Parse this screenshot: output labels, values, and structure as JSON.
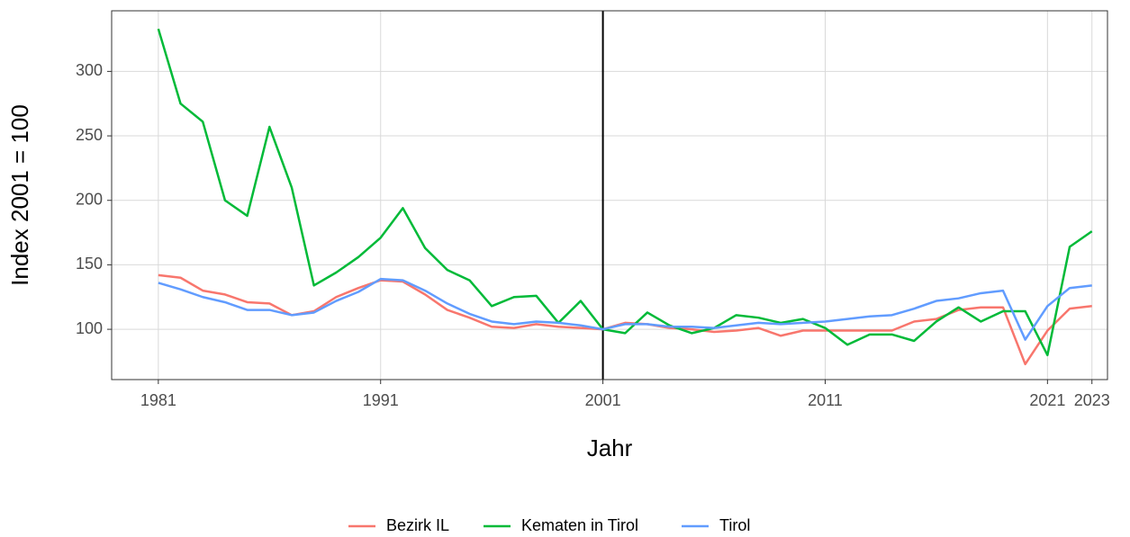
{
  "chart_data": {
    "type": "line",
    "x_label": "Jahr",
    "y_label": "Index 2001 = 100",
    "x": [
      1981,
      1982,
      1983,
      1984,
      1985,
      1986,
      1987,
      1988,
      1989,
      1990,
      1991,
      1992,
      1993,
      1994,
      1995,
      1996,
      1997,
      1998,
      1999,
      2000,
      2001,
      2002,
      2003,
      2004,
      2005,
      2006,
      2007,
      2008,
      2009,
      2010,
      2011,
      2012,
      2013,
      2014,
      2015,
      2016,
      2017,
      2018,
      2019,
      2020,
      2021,
      2022,
      2023
    ],
    "series": [
      {
        "name": "Bezirk IL",
        "color": "#f8766d",
        "values": [
          142,
          140,
          130,
          127,
          121,
          120,
          111,
          114,
          125,
          132,
          138,
          137,
          127,
          115,
          109,
          102,
          101,
          104,
          102,
          101,
          100,
          105,
          104,
          101,
          100,
          98,
          99,
          101,
          95,
          99,
          99,
          99,
          99,
          99,
          106,
          108,
          115,
          117,
          117,
          73,
          99,
          116,
          118
        ]
      },
      {
        "name": "Kematen in Tirol",
        "color": "#00ba38",
        "values": [
          333,
          275,
          261,
          200,
          188,
          257,
          210,
          134,
          144,
          156,
          171,
          194,
          163,
          146,
          138,
          118,
          125,
          126,
          105,
          122,
          100,
          97,
          113,
          103,
          97,
          101,
          111,
          109,
          105,
          108,
          101,
          88,
          96,
          96,
          91,
          106,
          117,
          106,
          114,
          114,
          80,
          164,
          176
        ]
      },
      {
        "name": "Tirol",
        "color": "#619cff",
        "values": [
          136,
          131,
          125,
          121,
          115,
          115,
          111,
          113,
          122,
          129,
          139,
          138,
          130,
          120,
          112,
          106,
          104,
          106,
          105,
          103,
          100,
          104,
          104,
          102,
          102,
          101,
          103,
          105,
          104,
          105,
          106,
          108,
          110,
          111,
          116,
          122,
          124,
          128,
          130,
          92,
          118,
          132,
          134
        ]
      }
    ],
    "xlim": [
      1978.9,
      2023.7
    ],
    "xticks": [
      1981,
      1991,
      2001,
      2011,
      2021,
      2023
    ],
    "ylim": [
      61,
      347
    ],
    "yticks": [
      100,
      150,
      200,
      250,
      300
    ],
    "vline": 2001,
    "grid": true,
    "legend": "bottom"
  }
}
